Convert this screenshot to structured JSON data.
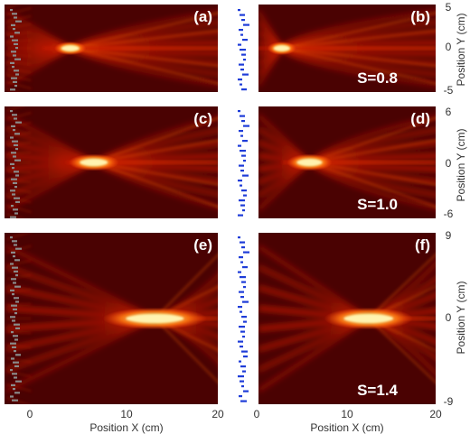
{
  "figure": {
    "panels": [
      {
        "id": "a",
        "label": "(a)",
        "s_label": "",
        "y_ticks": [],
        "focus_x_cm": 4.3,
        "focus_length": 0.8,
        "width_scale": 0.8
      },
      {
        "id": "b",
        "label": "(b)",
        "s_label": "S=0.8",
        "y_ticks": [
          "5",
          "0",
          "-5"
        ],
        "focus_x_cm": 2.8,
        "focus_length": 0.8,
        "width_scale": 0.8
      },
      {
        "id": "c",
        "label": "(c)",
        "s_label": "",
        "y_ticks": [],
        "focus_x_cm": 6.8,
        "focus_length": 1.0,
        "width_scale": 1.0
      },
      {
        "id": "d",
        "label": "(d)",
        "s_label": "S=1.0",
        "y_ticks": [
          "6",
          "0",
          "-6"
        ],
        "focus_x_cm": 5.9,
        "focus_length": 1.0,
        "width_scale": 1.0
      },
      {
        "id": "e",
        "label": "(e)",
        "s_label": "",
        "y_ticks": [],
        "focus_x_cm": 13.3,
        "focus_length": 1.6,
        "width_scale": 1.3
      },
      {
        "id": "f",
        "label": "(f)",
        "s_label": "S=1.4",
        "y_ticks": [
          "9",
          "0",
          "-9"
        ],
        "focus_x_cm": 12.5,
        "focus_length": 1.5,
        "width_scale": 1.3
      }
    ],
    "x_axis_title": "Position X (cm)",
    "y_axis_title": "Position Y (cm)",
    "x_tick_labels": [
      "0",
      "10",
      "20"
    ],
    "x_tick_values": [
      0,
      10,
      20
    ],
    "x_range_cm": [
      -2.5,
      20
    ],
    "colors": {
      "field_background": "#4a0202",
      "beam_mid": "#c81c06",
      "beam_hot": "#ff6a10",
      "focus_core": "#fff3b0",
      "metasurface_left": "#8a8a8a",
      "metasurface_right": "#1e3cd8"
    }
  }
}
